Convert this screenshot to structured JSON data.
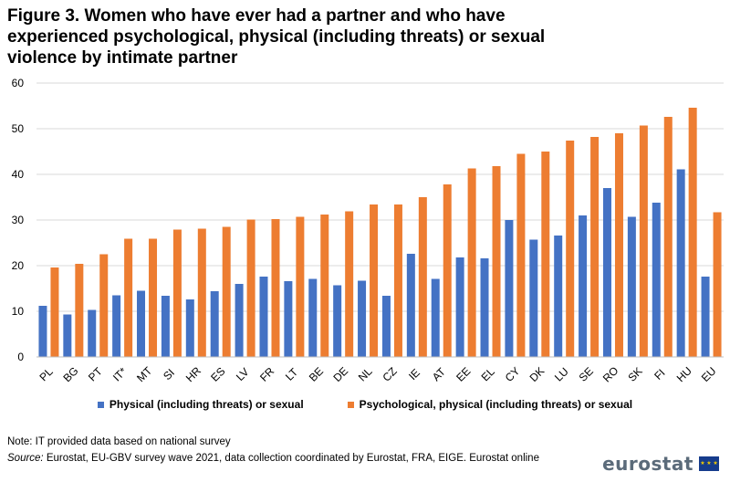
{
  "title": "Figure 3. Women who have ever had a partner and who have experienced psychological, physical (including threats) or sexual violence by intimate partner",
  "note": "Note: IT provided data based on national survey",
  "source": {
    "label": "Source:",
    "text": " Eurostat, EU-GBV survey wave 2021, data collection coordinated by Eurostat, FRA, EIGE. Eurostat online"
  },
  "logo": {
    "text": "eurostat",
    "icon": "eu-flag-icon"
  },
  "colors": {
    "physical": "#4472c4",
    "psychological": "#ed7d31",
    "grid": "#d9d9d9"
  },
  "chart_data": {
    "type": "bar",
    "title": "Figure 3. Women who have ever had a partner and who have experienced psychological, physical (including threats) or sexual violence by intimate partner",
    "xlabel": "",
    "ylabel": "",
    "ylim": [
      0,
      60
    ],
    "yticks": [
      0,
      10,
      20,
      30,
      40,
      50,
      60
    ],
    "grid": true,
    "legend_position": "bottom",
    "categories": [
      "PL",
      "BG",
      "PT",
      "IT*",
      "MT",
      "SI",
      "HR",
      "ES",
      "LV",
      "FR",
      "LT",
      "BE",
      "DE",
      "NL",
      "CZ",
      "IE",
      "AT",
      "EE",
      "EL",
      "CY",
      "DK",
      "LU",
      "SE",
      "RO",
      "SK",
      "FI",
      "HU",
      "EU"
    ],
    "series": [
      {
        "name": "Physical (including threats) or sexual",
        "color": "#4472c4",
        "values": [
          11.2,
          9.3,
          10.3,
          13.5,
          14.5,
          13.4,
          12.6,
          14.4,
          16.0,
          17.6,
          16.6,
          17.1,
          15.7,
          16.7,
          13.4,
          22.6,
          17.1,
          21.8,
          21.6,
          30.0,
          25.7,
          26.6,
          31.0,
          37.0,
          30.7,
          33.8,
          41.1,
          17.6
        ]
      },
      {
        "name": "Psychological, physical (including threats) or sexual",
        "color": "#ed7d31",
        "values": [
          19.6,
          20.4,
          22.5,
          25.9,
          25.9,
          27.9,
          28.1,
          28.5,
          30.1,
          30.2,
          30.7,
          31.2,
          31.9,
          33.4,
          33.4,
          35.0,
          37.8,
          41.3,
          41.8,
          44.5,
          45.0,
          47.4,
          48.2,
          49.0,
          50.7,
          52.6,
          54.6,
          31.7
        ]
      }
    ]
  }
}
